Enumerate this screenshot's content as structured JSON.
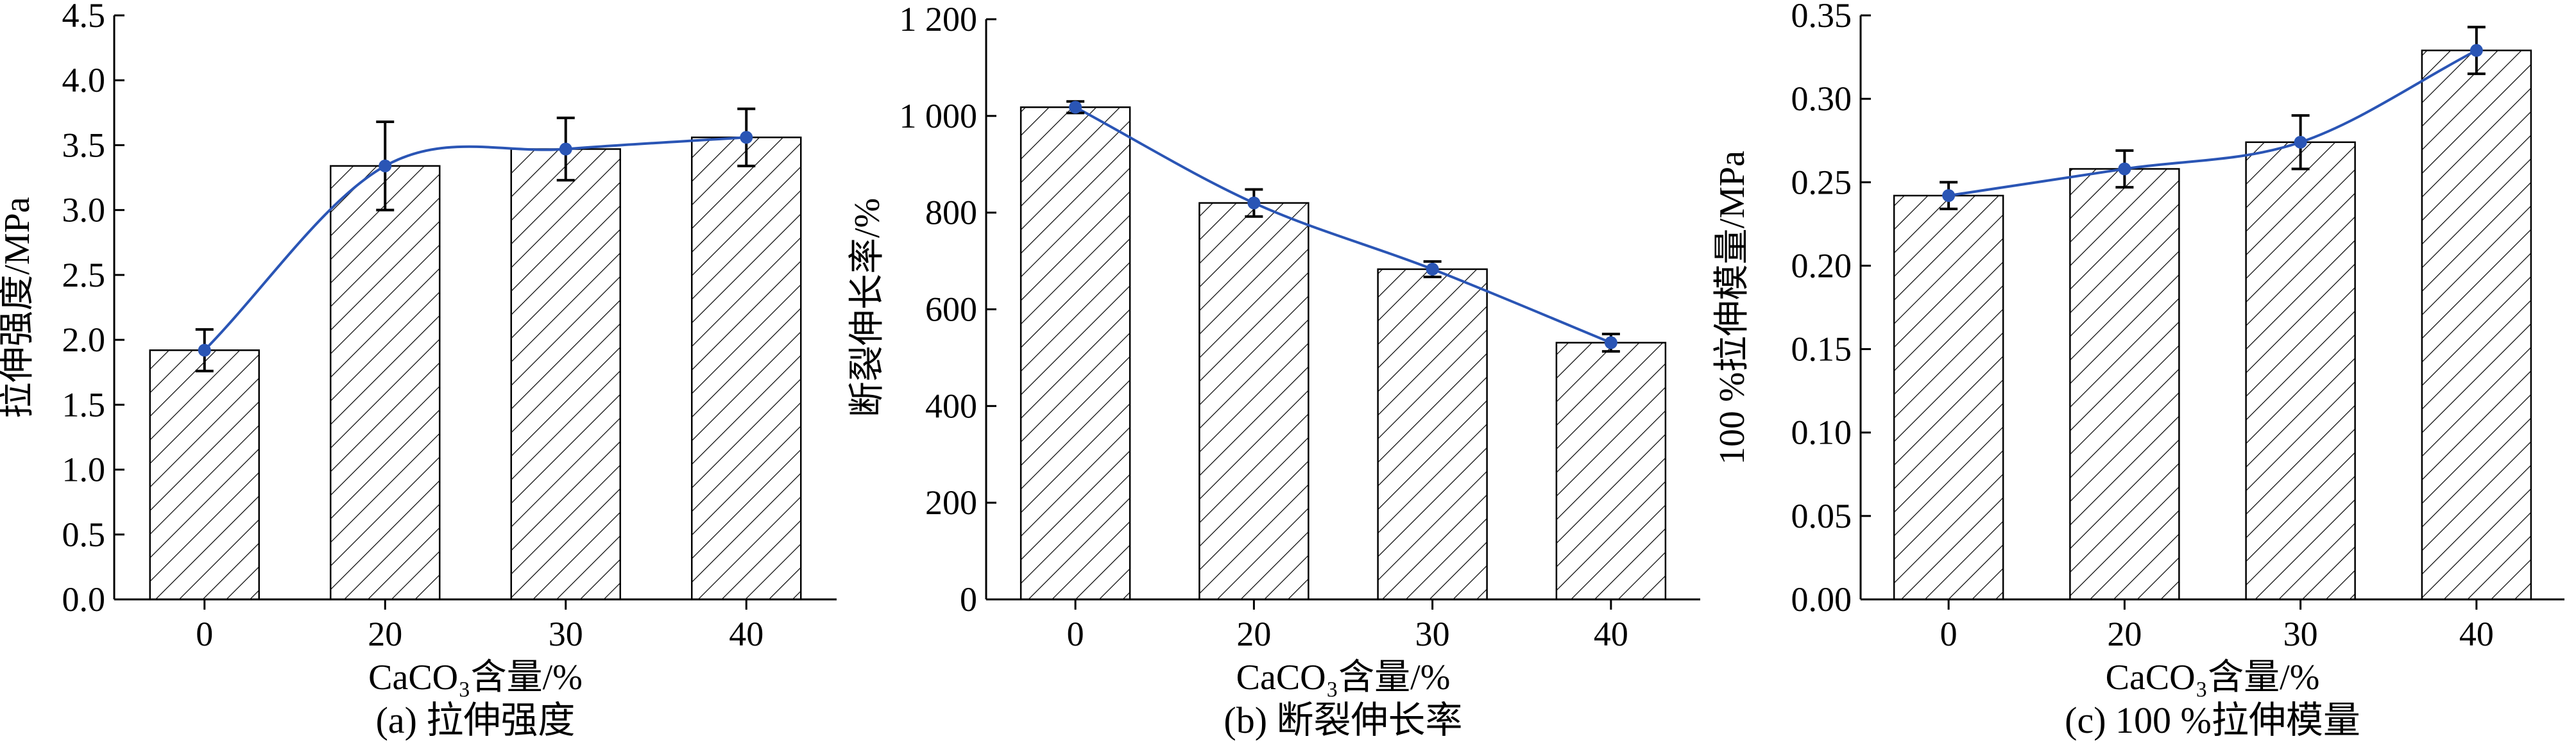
{
  "figure_colors": {
    "series": "#2a55b5",
    "axes": "#000000",
    "hatch": "#000000",
    "bar_fill": "#ffffff"
  },
  "chart_data": [
    {
      "type": "bar",
      "categories": [
        "0",
        "20",
        "30",
        "40"
      ],
      "values": [
        1.92,
        3.34,
        3.47,
        3.56
      ],
      "errors": [
        0.16,
        0.34,
        0.24,
        0.22
      ],
      "ylim": [
        0,
        4.5
      ],
      "yticks": [
        "0.0",
        "0.5",
        "1.0",
        "1.5",
        "2.0",
        "2.5",
        "3.0",
        "3.5",
        "4.0",
        "4.5"
      ],
      "ylabel": "拉伸强度/MPa",
      "xlabel": "CaCO₃含量/%",
      "caption": "(a) 拉伸强度",
      "line_overlay": true
    },
    {
      "type": "bar",
      "categories": [
        "0",
        "20",
        "30",
        "40"
      ],
      "values": [
        1018,
        820,
        683,
        531
      ],
      "errors": [
        12,
        28,
        16,
        18
      ],
      "ylim": [
        0,
        1200
      ],
      "yticks": [
        "0",
        "200",
        "400",
        "600",
        "800",
        "1 000",
        "1 200"
      ],
      "ylabel": "断裂伸长率/%",
      "xlabel": "CaCO₃含量/%",
      "caption": "(b) 断裂伸长率",
      "line_overlay": true
    },
    {
      "type": "bar",
      "categories": [
        "0",
        "20",
        "30",
        "40"
      ],
      "values": [
        0.242,
        0.258,
        0.274,
        0.329
      ],
      "errors": [
        0.008,
        0.011,
        0.016,
        0.014
      ],
      "ylim": [
        0,
        0.35
      ],
      "yticks": [
        "0.00",
        "0.05",
        "0.10",
        "0.15",
        "0.20",
        "0.25",
        "0.30",
        "0.35"
      ],
      "ylabel": "100 %拉伸模量/MPa",
      "xlabel": "CaCO₃含量/%",
      "caption": "(c) 100 %拉伸模量",
      "line_overlay": true
    }
  ]
}
